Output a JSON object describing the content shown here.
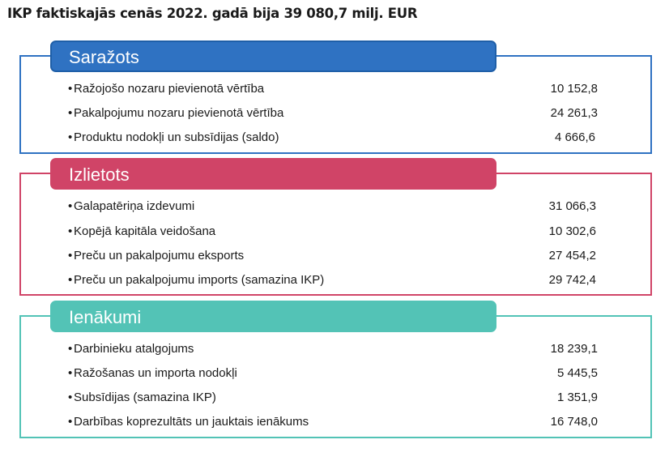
{
  "title": "IKP faktiskajās cenās 2022. gadā bija 39 080,7 milj. EUR",
  "colors": {
    "production": "#2f72c2",
    "expenditure": "#d04467",
    "income": "#53c3b6"
  },
  "sections": {
    "production": {
      "header": "Saražots",
      "rows": [
        {
          "bullet": "•",
          "label": "Ražojošo nozaru pievienotā vērtība",
          "value": "10 152,8"
        },
        {
          "bullet": "•",
          "label": "Pakalpojumu nozaru pievienotā vērtība",
          "value": "24 261,3"
        },
        {
          "bullet": "•",
          "label": "Produktu nodokļi un subsīdijas (saldo)",
          "value": "4 666,6"
        }
      ]
    },
    "expenditure": {
      "header": "Izlietots",
      "rows": [
        {
          "bullet": "•",
          "label": "Galapatēriņa izdevumi",
          "value": "31 066,3"
        },
        {
          "bullet": "•",
          "label": "Kopējā kapitāla veidošana",
          "value": "10 302,6"
        },
        {
          "bullet": "•",
          "label": "Preču un pakalpojumu eksports",
          "value": "27 454,2"
        },
        {
          "bullet": "•",
          "label": "Preču un pakalpojumu imports (samazina IKP)",
          "value": "29 742,4"
        }
      ]
    },
    "income": {
      "header": "Ienākumi",
      "rows": [
        {
          "bullet": "•",
          "label": "Darbinieku atalgojums",
          "value": "18 239,1"
        },
        {
          "bullet": "•",
          "label": "Ražošanas un importa nodokļi",
          "value": "5 445,5"
        },
        {
          "bullet": "•",
          "label": "Subsīdijas (samazina IKP)",
          "value": "1 351,9"
        },
        {
          "bullet": "•",
          "label": "Darbības koprezultāts un jauktais ienākums",
          "value": "16 748,0"
        }
      ]
    }
  }
}
